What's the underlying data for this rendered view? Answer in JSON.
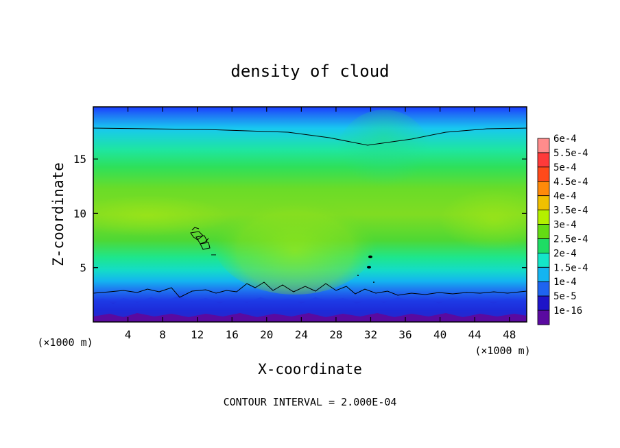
{
  "chart_data": {
    "type": "heatmap",
    "title": "density of cloud",
    "xlabel": "X-coordinate",
    "ylabel": "Z-coordinate",
    "x_unit_label": "(×1000 m)",
    "y_unit_label": "(×1000 m)",
    "xlim": [
      0,
      50
    ],
    "ylim": [
      0,
      19.8
    ],
    "x_ticks": [
      4,
      8,
      12,
      16,
      20,
      24,
      28,
      32,
      36,
      40,
      44,
      48
    ],
    "y_ticks": [
      5,
      10,
      15
    ],
    "footer": "CONTOUR INTERVAL = 2.000E-04",
    "colorbar": {
      "labels": [
        "6e-4",
        "5.5e-4",
        "5e-4",
        "4.5e-4",
        "4e-4",
        "3.5e-4",
        "3e-4",
        "2.5e-4",
        "2e-4",
        "1.5e-4",
        "1e-4",
        "5e-5",
        "1e-16"
      ],
      "colors": [
        "#ff8c8c",
        "#ff3a3a",
        "#ff4a1a",
        "#ff8a0a",
        "#f0c000",
        "#b4f000",
        "#64dc14",
        "#1edc64",
        "#14e6c8",
        "#14b4f0",
        "#1e64f0",
        "#1e14c8",
        "#5a0aa0"
      ]
    }
  }
}
